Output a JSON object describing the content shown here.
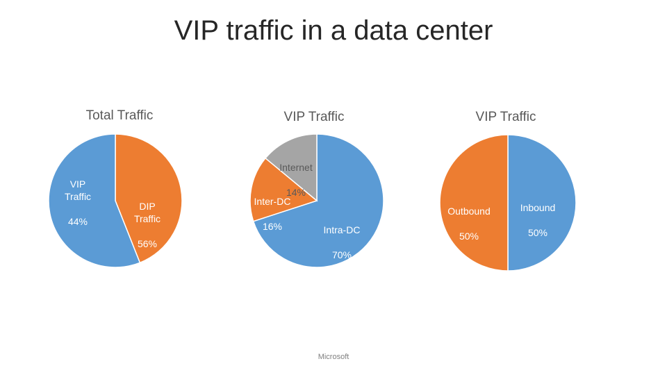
{
  "slide": {
    "title": "VIP traffic in a data center",
    "footer": "Microsoft"
  },
  "colors": {
    "blue": "#5b9bd5",
    "orange": "#ed7d31",
    "gray": "#a5a5a5"
  },
  "chart_data": [
    {
      "type": "pie",
      "title": "Total Traffic",
      "slices": [
        {
          "name": "VIP Traffic",
          "value": 44,
          "label": "44%",
          "color": "#ed7d31"
        },
        {
          "name": "DIP Traffic",
          "value": 56,
          "label": "56%",
          "color": "#5b9bd5"
        }
      ]
    },
    {
      "type": "pie",
      "title": "VIP Traffic",
      "slices": [
        {
          "name": "Intra-DC",
          "value": 70,
          "label": "70%",
          "color": "#5b9bd5"
        },
        {
          "name": "Inter-DC",
          "value": 16,
          "label": "16%",
          "color": "#ed7d31"
        },
        {
          "name": "Internet",
          "value": 14,
          "label": "14%",
          "color": "#a5a5a5"
        }
      ]
    },
    {
      "type": "pie",
      "title": "VIP Traffic",
      "slices": [
        {
          "name": "Inbound",
          "value": 50,
          "label": "50%",
          "color": "#5b9bd5"
        },
        {
          "name": "Outbound",
          "value": 50,
          "label": "50%",
          "color": "#ed7d31"
        }
      ]
    }
  ]
}
